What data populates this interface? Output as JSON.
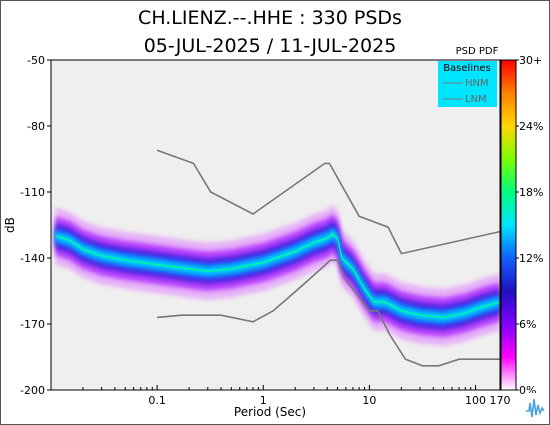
{
  "chart_data": {
    "type": "heatmap",
    "title": "CH.LIENZ.--.HHE : 330 PSDs",
    "subtitle": "05-JUL-2025 / 11-JUL-2025",
    "xlabel": "Period (Sec)",
    "ylabel": "dB",
    "x_scale": "log",
    "xlim": [
      0.01,
      170
    ],
    "ylim": [
      -200,
      -50
    ],
    "x_ticks": [
      {
        "label": "0.1",
        "value": 0.1
      },
      {
        "label": "1",
        "value": 1
      },
      {
        "label": "10",
        "value": 10
      },
      {
        "label": "100",
        "value": 100
      },
      {
        "label": "170",
        "value": 170
      }
    ],
    "y_ticks": [
      "-50",
      "-80",
      "-110",
      "-140",
      "-170",
      "-200"
    ],
    "y_tick_values": [
      -50,
      -80,
      -110,
      -140,
      -170,
      -200
    ],
    "colorbar": {
      "title": "PSD PDF",
      "labels": [
        "30+",
        "24%",
        "18%",
        "12%",
        "6%",
        "0%"
      ],
      "stops": [
        "#ff0000",
        "#ff8000",
        "#ffd700",
        "#7cfc00",
        "#00ff80",
        "#00e5ff",
        "#1060ff",
        "#2010c0",
        "#8000ff",
        "#ff00ff",
        "#ffffff"
      ]
    },
    "legend": {
      "title": "Baselines",
      "entries": [
        "HNM",
        "LNM"
      ],
      "position": "top-right",
      "background": "#00e5ff"
    },
    "baselines": {
      "HNM": [
        [
          0.1,
          -91
        ],
        [
          0.22,
          -97
        ],
        [
          0.32,
          -110
        ],
        [
          0.8,
          -120
        ],
        [
          3.8,
          -97
        ],
        [
          4.2,
          -97
        ],
        [
          8,
          -121
        ],
        [
          15,
          -126
        ],
        [
          20,
          -138
        ],
        [
          170,
          -128
        ]
      ],
      "LNM": [
        [
          0.1,
          -167
        ],
        [
          0.17,
          -166
        ],
        [
          0.4,
          -166
        ],
        [
          0.8,
          -169
        ],
        [
          1.24,
          -164
        ],
        [
          2.4,
          -152
        ],
        [
          4.3,
          -141
        ],
        [
          5,
          -141
        ],
        [
          6,
          -150
        ],
        [
          10,
          -164
        ],
        [
          12,
          -164
        ],
        [
          15.6,
          -175
        ],
        [
          21.9,
          -186
        ],
        [
          31.6,
          -189
        ],
        [
          45,
          -189
        ],
        [
          70,
          -186
        ],
        [
          170,
          -186
        ]
      ]
    },
    "pdf_band_mode": [
      [
        0.011,
        -130
      ],
      [
        0.015,
        -132
      ],
      [
        0.02,
        -136
      ],
      [
        0.03,
        -139
      ],
      [
        0.05,
        -141
      ],
      [
        0.1,
        -143
      ],
      [
        0.2,
        -145
      ],
      [
        0.3,
        -146
      ],
      [
        0.5,
        -145
      ],
      [
        1,
        -142
      ],
      [
        2,
        -137
      ],
      [
        3,
        -133
      ],
      [
        4,
        -131
      ],
      [
        4.5,
        -129
      ],
      [
        5,
        -131
      ],
      [
        5.5,
        -140
      ],
      [
        6,
        -142
      ],
      [
        7,
        -145
      ],
      [
        9,
        -154
      ],
      [
        11,
        -160
      ],
      [
        14,
        -160
      ],
      [
        20,
        -164
      ],
      [
        30,
        -166
      ],
      [
        50,
        -167
      ],
      [
        80,
        -165
      ],
      [
        120,
        -162
      ],
      [
        170,
        -160
      ]
    ]
  },
  "watermark": {
    "icon": "waveform-logo-icon"
  }
}
